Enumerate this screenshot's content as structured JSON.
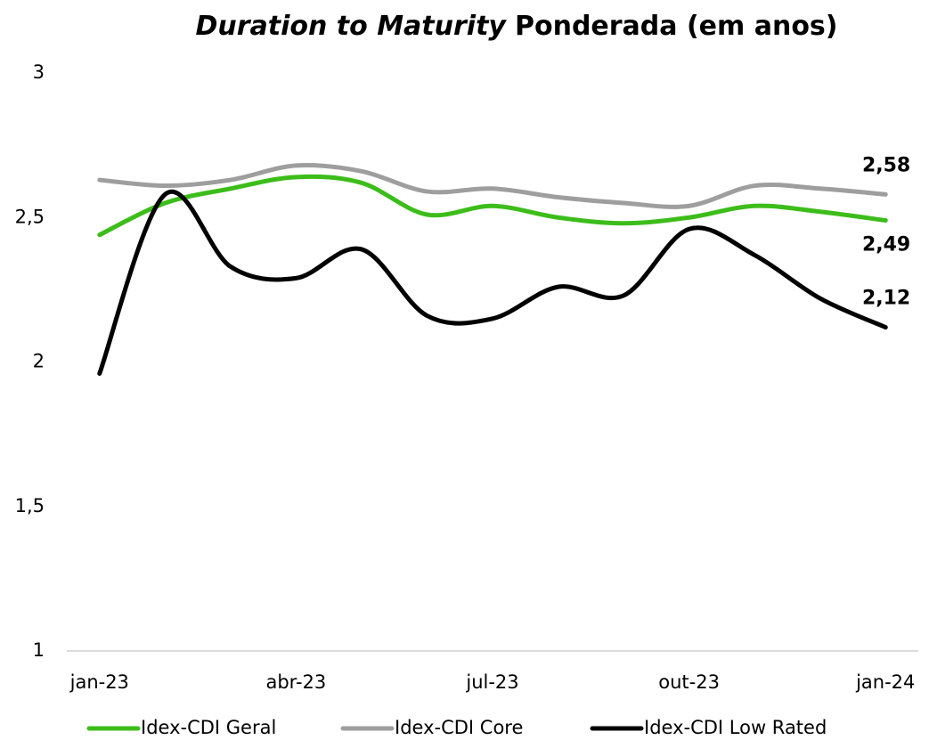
{
  "chart_data": {
    "type": "line",
    "title": {
      "emphasis": "Duration to Maturity",
      "rest": "Ponderada (em anos)"
    },
    "categories": [
      "jan-23",
      null,
      null,
      "abr-23",
      null,
      null,
      "jul-23",
      null,
      null,
      "out-23",
      null,
      null,
      "jan-24"
    ],
    "series": [
      {
        "name": "Idex-CDI Geral",
        "color": "#3cbd1a",
        "values": [
          2.44,
          2.55,
          2.6,
          2.64,
          2.62,
          2.51,
          2.54,
          2.5,
          2.48,
          2.5,
          2.54,
          2.52,
          2.49
        ],
        "value_labels": [
          null,
          null,
          null,
          null,
          null,
          null,
          null,
          null,
          null,
          null,
          null,
          null,
          "2,49"
        ]
      },
      {
        "name": "Idex-CDI Core",
        "color": "#9e9e9e",
        "values": [
          2.63,
          2.61,
          2.63,
          2.68,
          2.66,
          2.59,
          2.6,
          2.57,
          2.55,
          2.54,
          2.61,
          2.6,
          2.58
        ],
        "value_labels": [
          null,
          null,
          null,
          null,
          null,
          null,
          null,
          null,
          null,
          null,
          null,
          null,
          "2,58"
        ]
      },
      {
        "name": "Idex-CDI Low Rated",
        "color": "#000000",
        "values": [
          1.96,
          2.58,
          2.33,
          2.29,
          2.39,
          2.16,
          2.15,
          2.26,
          2.23,
          2.46,
          2.37,
          2.22,
          2.12
        ],
        "value_labels": [
          null,
          null,
          null,
          null,
          null,
          null,
          null,
          null,
          null,
          null,
          null,
          null,
          "2,12"
        ]
      }
    ],
    "ylim": [
      1,
      3
    ],
    "yticks": [
      1,
      {
        "value": 1.5,
        "label": "1,5"
      },
      2,
      {
        "value": 2.5,
        "label": "2,5"
      },
      3
    ],
    "grid": false,
    "legend": "bottom"
  }
}
